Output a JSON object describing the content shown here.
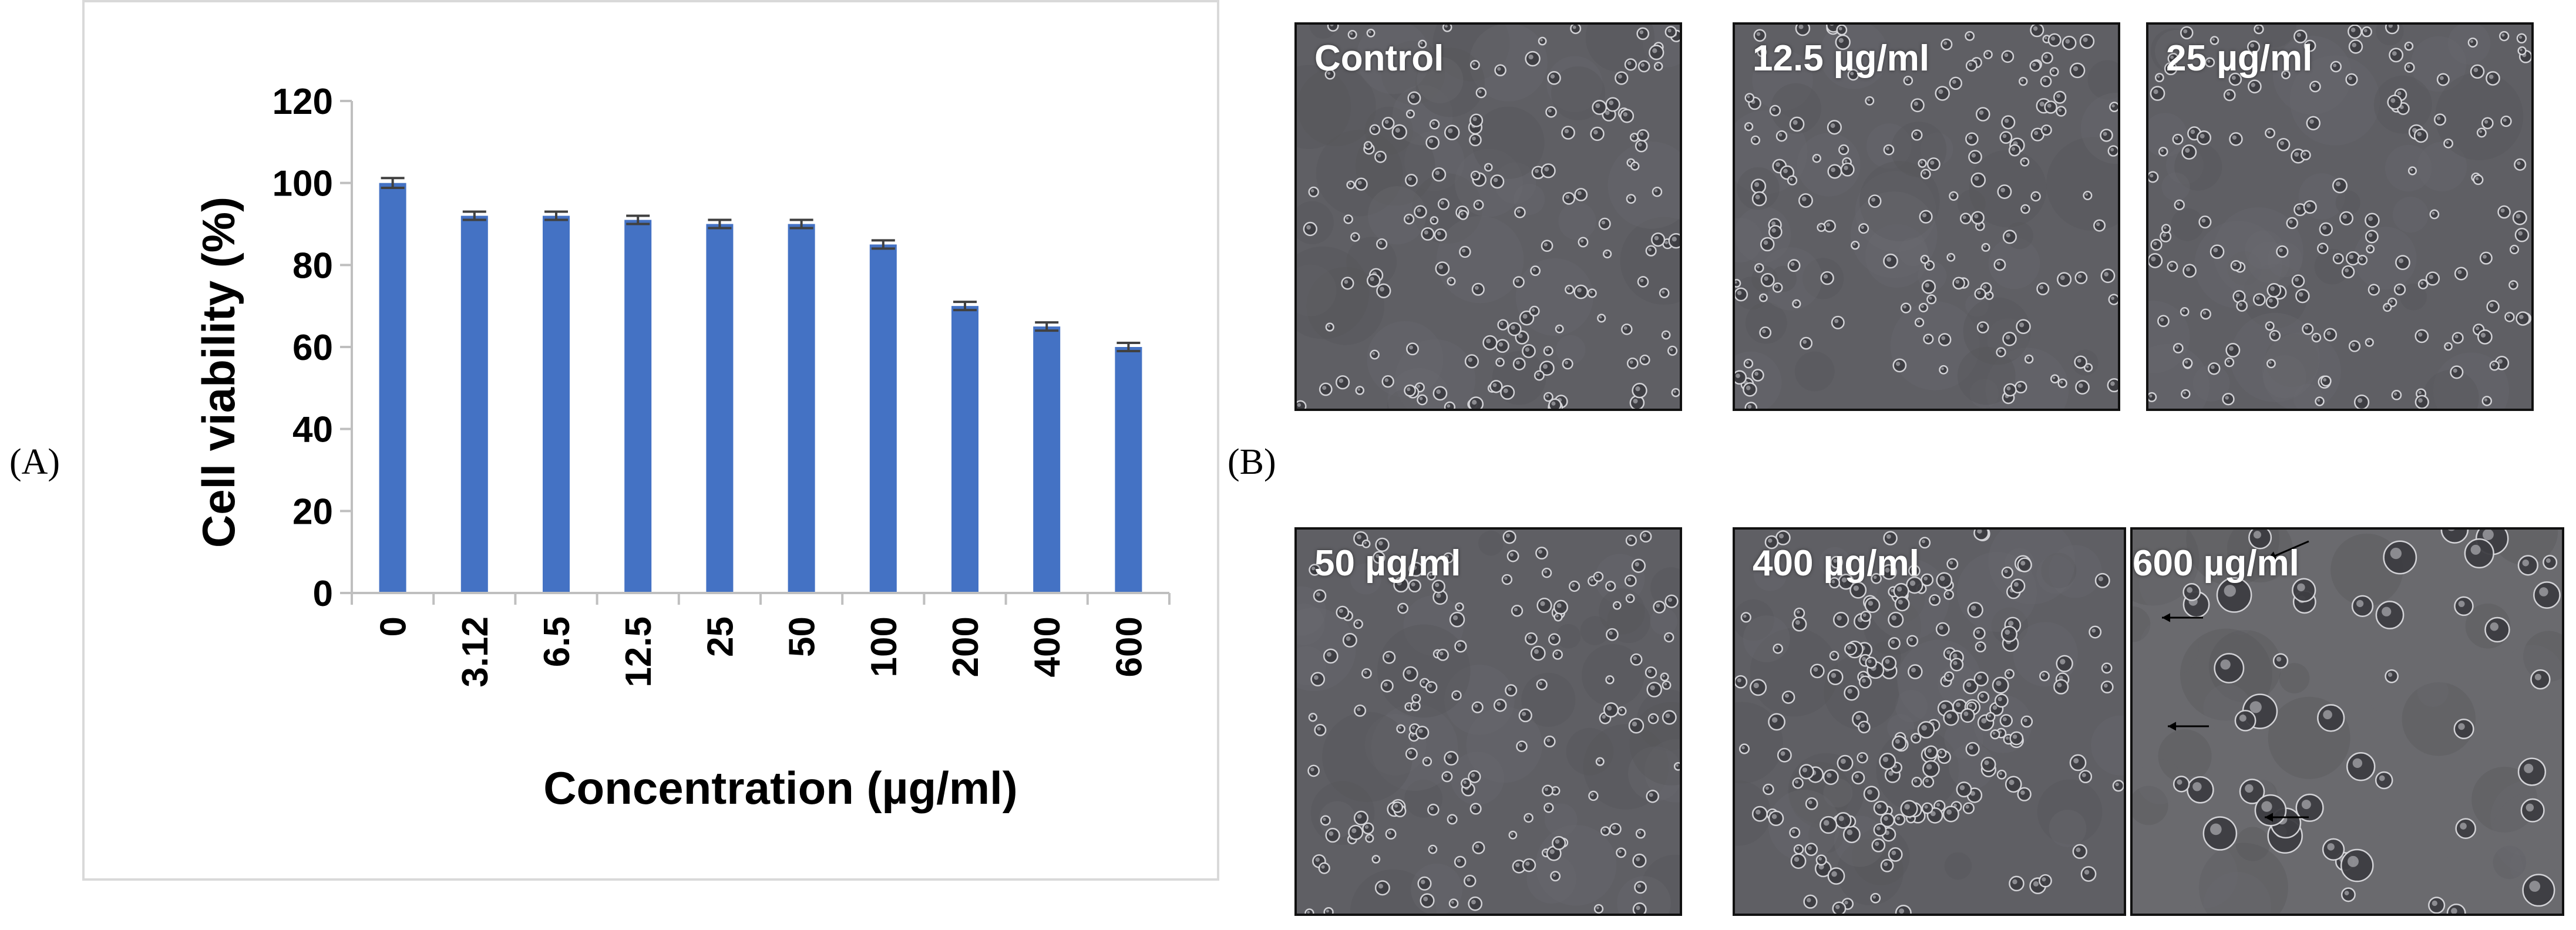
{
  "panels": {
    "a_label": "(A)",
    "b_label": "(B)"
  },
  "chart_data": {
    "type": "bar",
    "categories": [
      "0",
      "3.12",
      "6.5",
      "12.5",
      "25",
      "50",
      "100",
      "200",
      "400",
      "600"
    ],
    "values": [
      100,
      92,
      92,
      91,
      90,
      90,
      85,
      70,
      65,
      60
    ],
    "errors": [
      1.2,
      1.0,
      1.0,
      1.0,
      1.0,
      1.0,
      1.0,
      1.0,
      1.0,
      1.0
    ],
    "title": "",
    "xlabel": "Concentration (µg/ml)",
    "ylabel": "Cell viability (%)",
    "ylim": [
      0,
      120
    ],
    "yticks": [
      0,
      20,
      40,
      60,
      80,
      100,
      120
    ],
    "bar_color": "#4472c4",
    "error_color": "#404040",
    "grid": false,
    "legend": "none"
  },
  "micrographs": [
    {
      "label": "Control",
      "cells": "small",
      "seed": 11
    },
    {
      "label": "12.5 µg/ml",
      "cells": "small",
      "seed": 23
    },
    {
      "label": "25 µg/ml",
      "cells": "small",
      "seed": 37
    },
    {
      "label": "50 µg/ml",
      "cells": "small",
      "seed": 41
    },
    {
      "label": "400 µg/ml",
      "cells": "clumped",
      "seed": 53
    },
    {
      "label": "600 µg/ml",
      "cells": "sparse-large",
      "seed": 67
    }
  ]
}
